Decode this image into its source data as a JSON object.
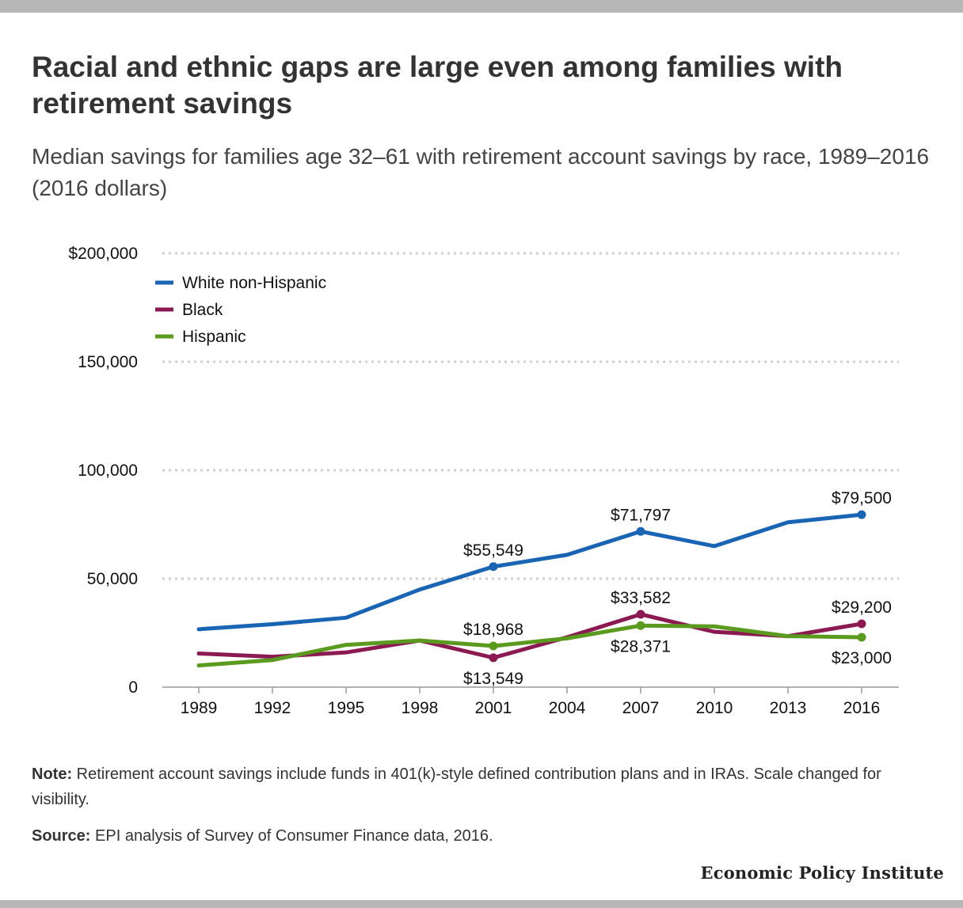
{
  "title": "Racial and ethnic gaps are large even among families with retirement savings",
  "subtitle": "Median savings for families age 32–61 with retirement account savings by race, 1989–2016 (2016 dollars)",
  "note_label": "Note:",
  "note_text": " Retirement account savings include funds in 401(k)-style defined contribution plans and in IRAs. Scale changed for visibility.",
  "source_label": "Source:",
  "source_text": " EPI analysis of Survey of Consumer Finance data, 2016.",
  "brand": "Economic Policy Institute",
  "chart_data": {
    "type": "line",
    "x": [
      1989,
      1992,
      1995,
      1998,
      2001,
      2004,
      2007,
      2010,
      2013,
      2016
    ],
    "ylim": [
      0,
      200000
    ],
    "y_ticks": [
      0,
      50000,
      100000,
      150000,
      200000
    ],
    "y_tick_labels": [
      "0",
      "50,000",
      "100,000",
      "150,000",
      "$200,000"
    ],
    "grid": true,
    "legend_position": "top-left",
    "series": [
      {
        "name": "White non-Hispanic",
        "color": "#1a64b4",
        "values": [
          26700,
          29000,
          32000,
          45000,
          55549,
          61000,
          71797,
          65000,
          76000,
          79500
        ]
      },
      {
        "name": "Black",
        "color": "#8b1a52",
        "values": [
          15500,
          14000,
          16000,
          21500,
          13549,
          23000,
          33582,
          25500,
          23500,
          29200
        ]
      },
      {
        "name": "Hispanic",
        "color": "#5a9a1e",
        "values": [
          10000,
          12500,
          19500,
          21500,
          18968,
          22500,
          28371,
          28000,
          23500,
          23000
        ]
      }
    ],
    "annotations": [
      {
        "series": 0,
        "index": 4,
        "text": "$55,549",
        "pos": "above"
      },
      {
        "series": 0,
        "index": 6,
        "text": "$71,797",
        "pos": "above"
      },
      {
        "series": 0,
        "index": 9,
        "text": "$79,500",
        "pos": "above"
      },
      {
        "series": 1,
        "index": 4,
        "text": "$13,549",
        "pos": "below"
      },
      {
        "series": 1,
        "index": 6,
        "text": "$33,582",
        "pos": "above"
      },
      {
        "series": 1,
        "index": 9,
        "text": "$29,200",
        "pos": "above"
      },
      {
        "series": 2,
        "index": 4,
        "text": "$18,968",
        "pos": "above"
      },
      {
        "series": 2,
        "index": 6,
        "text": "$28,371",
        "pos": "below"
      },
      {
        "series": 2,
        "index": 9,
        "text": "$23,000",
        "pos": "below"
      }
    ]
  }
}
